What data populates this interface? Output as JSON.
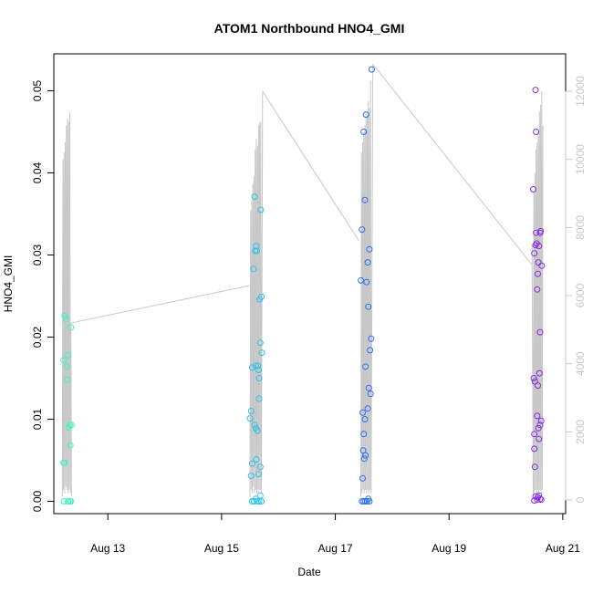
{
  "chart_data": {
    "type": "scatter",
    "title": "ATOM1 Northbound HNO4_GMI",
    "xlabel": "Date",
    "ylabel": "HNO4_GMI",
    "x_ticks": [
      "Aug 13",
      "Aug 15",
      "Aug 17",
      "Aug 19",
      "Aug 21"
    ],
    "xlim_days": [
      12.05,
      21.05
    ],
    "x_tick_days": [
      13,
      15,
      17,
      19,
      21
    ],
    "ylim": [
      -0.0015,
      0.0545
    ],
    "y_ticks": [
      "0.00",
      "0.01",
      "0.02",
      "0.03",
      "0.04",
      "0.05"
    ],
    "y_tick_values": [
      0,
      0.01,
      0.02,
      0.03,
      0.04,
      0.05
    ],
    "y2lim": [
      -400,
      13100
    ],
    "y2_ticks": [
      "0",
      "2000",
      "4000",
      "6000",
      "8000",
      "10000",
      "12000"
    ],
    "y2_tick_values": [
      0,
      2000,
      4000,
      6000,
      8000,
      10000,
      12000
    ],
    "grid": false,
    "point_style": "open-circle",
    "flights": [
      {
        "color": "#3bf5c0",
        "points": [
          [
            12.22,
            0.0172
          ],
          [
            12.24,
            0.0226
          ],
          [
            12.26,
            0.0222
          ],
          [
            12.28,
            0.0164
          ],
          [
            12.29,
            0.0148
          ],
          [
            12.3,
            0.0178
          ],
          [
            12.31,
            0.009
          ],
          [
            12.33,
            0.0093
          ],
          [
            12.35,
            0.0212
          ],
          [
            12.34,
            0.0068
          ],
          [
            12.36,
            0.0093
          ],
          [
            12.22,
            0.0047
          ],
          [
            12.24,
            0.0047
          ],
          [
            12.23,
            0.0
          ],
          [
            12.3,
            0.0
          ],
          [
            12.33,
            0.0
          ],
          [
            12.35,
            0.0
          ]
        ],
        "altitude": [
          [
            12.2,
            100
          ],
          [
            12.21,
            10000
          ],
          [
            12.22,
            300
          ],
          [
            12.23,
            10200
          ],
          [
            12.24,
            200
          ],
          [
            12.25,
            10500
          ],
          [
            12.26,
            400
          ],
          [
            12.27,
            11000
          ],
          [
            12.28,
            300
          ],
          [
            12.29,
            11200
          ],
          [
            12.3,
            200
          ],
          [
            12.31,
            11100
          ],
          [
            12.32,
            300
          ],
          [
            12.33,
            11400
          ],
          [
            12.34,
            200
          ],
          [
            12.35,
            5200
          ],
          [
            12.36,
            100
          ]
        ]
      },
      {
        "color": "#29c3eb",
        "points": [
          [
            15.5,
            0.0101
          ],
          [
            15.52,
            0.011
          ],
          [
            15.54,
            0.0163
          ],
          [
            15.56,
            0.0283
          ],
          [
            15.58,
            0.0371
          ],
          [
            15.59,
            0.0305
          ],
          [
            15.6,
            0.0165
          ],
          [
            15.61,
            0.0311
          ],
          [
            15.62,
            0.0305
          ],
          [
            15.64,
            0.0165
          ],
          [
            15.65,
            0.016
          ],
          [
            15.66,
            0.0125
          ],
          [
            15.67,
            0.0246
          ],
          [
            15.68,
            0.0193
          ],
          [
            15.69,
            0.0355
          ],
          [
            15.7,
            0.0249
          ],
          [
            15.71,
            0.0181
          ],
          [
            15.58,
            0.0093
          ],
          [
            15.6,
            0.0089
          ],
          [
            15.63,
            0.0086
          ],
          [
            15.66,
            0.015
          ],
          [
            15.54,
            0.0046
          ],
          [
            15.61,
            0.0051
          ],
          [
            15.68,
            0.0042
          ],
          [
            15.52,
            0.0031
          ],
          [
            15.65,
            0.0033
          ],
          [
            15.54,
            0.0
          ],
          [
            15.57,
            0.0
          ],
          [
            15.6,
            0.0003
          ],
          [
            15.63,
            0.0
          ],
          [
            15.66,
            0.0
          ],
          [
            15.68,
            0.0007
          ],
          [
            15.7,
            0.0
          ]
        ],
        "altitude": [
          [
            15.5,
            100
          ],
          [
            15.51,
            8500
          ],
          [
            15.52,
            300
          ],
          [
            15.53,
            8800
          ],
          [
            15.54,
            200
          ],
          [
            15.55,
            9300
          ],
          [
            15.56,
            400
          ],
          [
            15.57,
            9500
          ],
          [
            15.58,
            200
          ],
          [
            15.59,
            10300
          ],
          [
            15.6,
            300
          ],
          [
            15.61,
            10600
          ],
          [
            15.62,
            200
          ],
          [
            15.63,
            10400
          ],
          [
            15.64,
            300
          ],
          [
            15.65,
            11000
          ],
          [
            15.66,
            200
          ],
          [
            15.67,
            11100
          ],
          [
            15.68,
            300
          ],
          [
            15.69,
            11100
          ],
          [
            15.7,
            200
          ],
          [
            15.72,
            12000
          ]
        ]
      },
      {
        "color": "#2a6ff5",
        "points": [
          [
            17.45,
            0.0269
          ],
          [
            17.47,
            0.0331
          ],
          [
            17.48,
            0.0108
          ],
          [
            17.5,
            0.045
          ],
          [
            17.52,
            0.0367
          ],
          [
            17.54,
            0.0471
          ],
          [
            17.55,
            0.0267
          ],
          [
            17.57,
            0.0291
          ],
          [
            17.58,
            0.0237
          ],
          [
            17.6,
            0.0307
          ],
          [
            17.61,
            0.0184
          ],
          [
            17.63,
            0.0198
          ],
          [
            17.62,
            0.0131
          ],
          [
            17.64,
            0.0526
          ],
          [
            17.53,
            0.0164
          ],
          [
            17.59,
            0.0138
          ],
          [
            17.57,
            0.0113
          ],
          [
            17.52,
            0.01
          ],
          [
            17.5,
            0.0082
          ],
          [
            17.49,
            0.0062
          ],
          [
            17.51,
            0.0052
          ],
          [
            17.53,
            0.0056
          ],
          [
            17.48,
            0.0028
          ],
          [
            17.47,
            0.0
          ],
          [
            17.5,
            0.0
          ],
          [
            17.53,
            0.0
          ],
          [
            17.56,
            0.0
          ],
          [
            17.58,
            0.0003
          ],
          [
            17.6,
            0.0
          ]
        ],
        "altitude": [
          [
            17.45,
            100
          ],
          [
            17.46,
            10200
          ],
          [
            17.47,
            200
          ],
          [
            17.48,
            10500
          ],
          [
            17.49,
            300
          ],
          [
            17.5,
            10800
          ],
          [
            17.51,
            200
          ],
          [
            17.52,
            11000
          ],
          [
            17.53,
            300
          ],
          [
            17.54,
            11400
          ],
          [
            17.55,
            200
          ],
          [
            17.56,
            11300
          ],
          [
            17.57,
            300
          ],
          [
            17.58,
            11700
          ],
          [
            17.59,
            200
          ],
          [
            17.6,
            11500
          ],
          [
            17.61,
            300
          ],
          [
            17.62,
            12300
          ],
          [
            17.63,
            200
          ],
          [
            17.66,
            12800
          ]
        ]
      },
      {
        "color": "#8a2be2",
        "points": [
          [
            20.48,
            0.038
          ],
          [
            20.5,
            0.0302
          ],
          [
            20.52,
            0.0312
          ],
          [
            20.54,
            0.0314
          ],
          [
            20.55,
            0.0258
          ],
          [
            20.57,
            0.0291
          ],
          [
            20.58,
            0.0311
          ],
          [
            20.6,
            0.0327
          ],
          [
            20.61,
            0.0329
          ],
          [
            20.63,
            0.0287
          ],
          [
            20.53,
            0.0327
          ],
          [
            20.56,
            0.0277
          ],
          [
            20.52,
            0.0501
          ],
          [
            20.53,
            0.045
          ],
          [
            20.49,
            0.015
          ],
          [
            20.51,
            0.0146
          ],
          [
            20.56,
            0.0141
          ],
          [
            20.6,
            0.0206
          ],
          [
            20.59,
            0.0156
          ],
          [
            20.55,
            0.0104
          ],
          [
            20.62,
            0.0098
          ],
          [
            20.6,
            0.0093
          ],
          [
            20.57,
            0.0089
          ],
          [
            20.5,
            0.0082
          ],
          [
            20.58,
            0.0076
          ],
          [
            20.5,
            0.0064
          ],
          [
            20.51,
            0.0042
          ],
          [
            20.5,
            0.0001
          ],
          [
            20.52,
            0.0006
          ],
          [
            20.55,
            0.0002
          ],
          [
            20.58,
            0.0007
          ],
          [
            20.6,
            0.0003
          ],
          [
            20.62,
            0.0002
          ],
          [
            20.56,
            0.0005
          ]
        ],
        "altitude": [
          [
            20.46,
            7500
          ],
          [
            20.48,
            100
          ],
          [
            20.49,
            9000
          ],
          [
            20.5,
            200
          ],
          [
            20.51,
            9600
          ],
          [
            20.52,
            300
          ],
          [
            20.53,
            10300
          ],
          [
            20.54,
            200
          ],
          [
            20.55,
            10500
          ],
          [
            20.56,
            300
          ],
          [
            20.57,
            10800
          ],
          [
            20.58,
            200
          ],
          [
            20.59,
            11400
          ],
          [
            20.6,
            300
          ],
          [
            20.61,
            11600
          ],
          [
            20.62,
            200
          ],
          [
            20.63,
            12000
          ],
          [
            20.64,
            300
          ],
          [
            20.65,
            11000
          ]
        ]
      }
    ],
    "connectors": [
      [
        [
          12.36,
          5200
        ],
        [
          15.5,
          6300
        ]
      ],
      [
        [
          15.72,
          12000
        ],
        [
          17.42,
          7600
        ]
      ],
      [
        [
          17.66,
          12800
        ],
        [
          20.46,
          6900
        ]
      ]
    ],
    "series_line_color": "#c8c8c8"
  }
}
